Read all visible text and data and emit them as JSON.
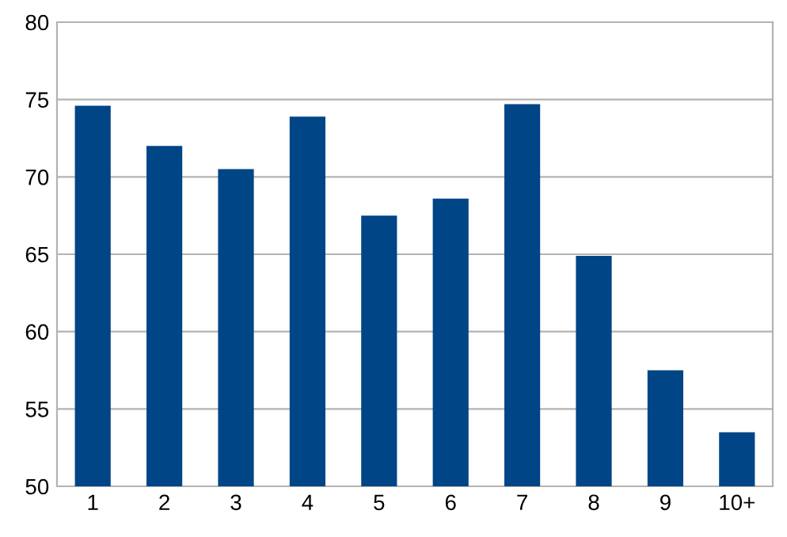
{
  "chart_data": {
    "type": "bar",
    "categories": [
      "1",
      "2",
      "3",
      "4",
      "5",
      "6",
      "7",
      "8",
      "9",
      "10+"
    ],
    "values": [
      74.6,
      72.0,
      70.5,
      73.9,
      67.5,
      68.6,
      74.7,
      64.9,
      57.5,
      53.5
    ],
    "color": "#004586",
    "ylim": [
      50,
      80
    ],
    "yticks": [
      50,
      55,
      60,
      65,
      70,
      75,
      80
    ],
    "grid": "y"
  }
}
